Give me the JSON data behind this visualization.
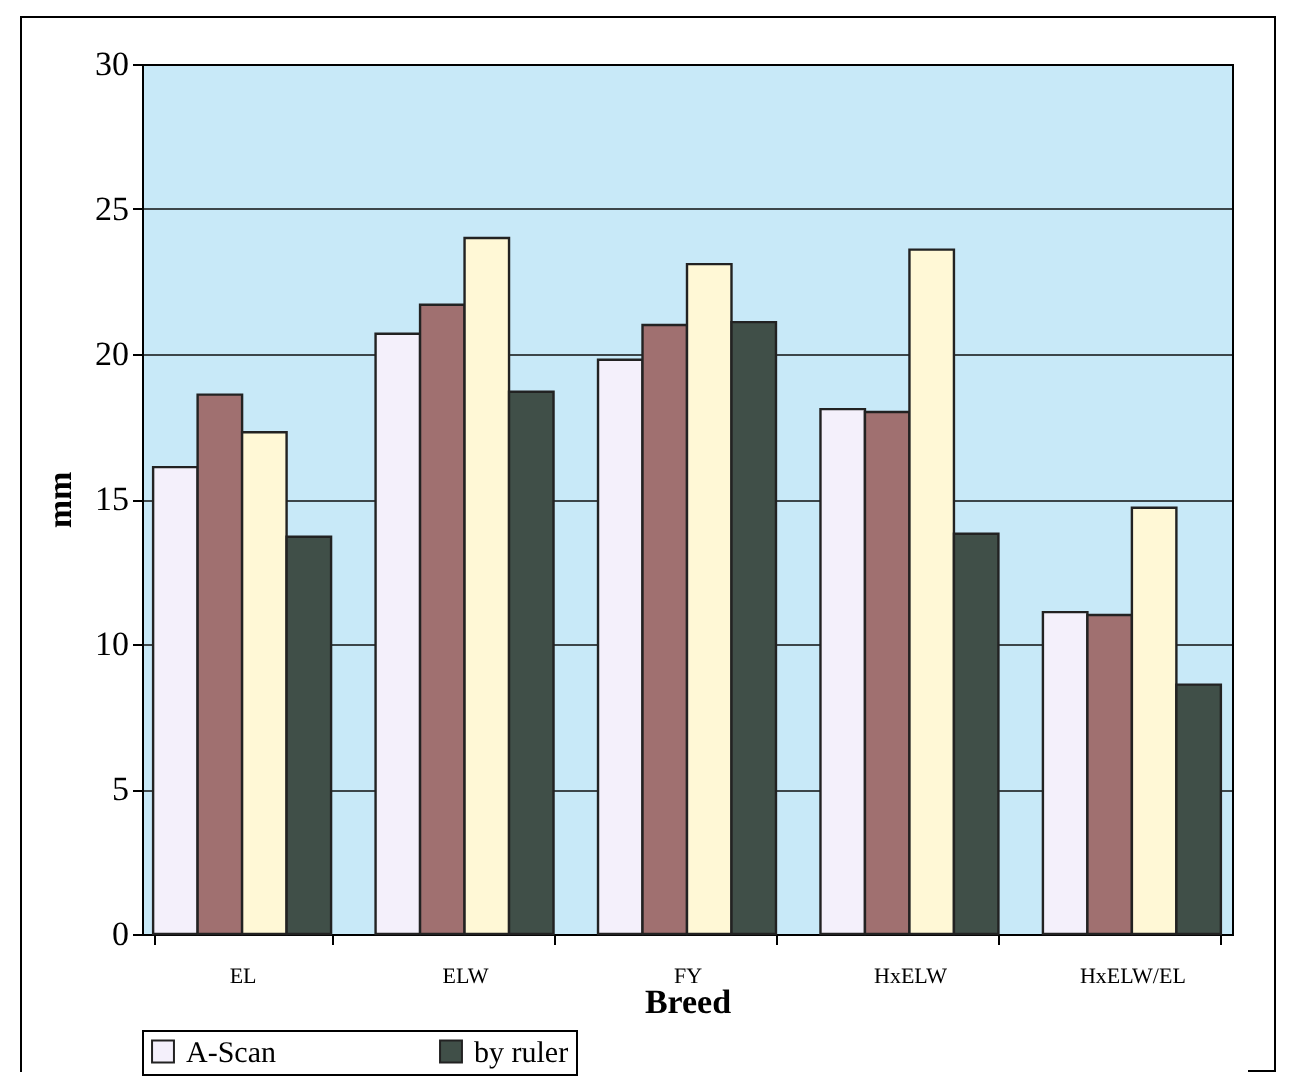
{
  "chart_data": {
    "type": "bar",
    "xlabel": "Breed",
    "ylabel": "mm",
    "categories": [
      "EL",
      "ELW",
      "FY",
      "HxELW",
      "HxELW/EL"
    ],
    "series": [
      {
        "name": "A-Scan",
        "color": "#f4f0fb",
        "values": [
          16.1,
          20.7,
          19.8,
          18.1,
          11.1
        ]
      },
      {
        "color": "#a07070",
        "values": [
          18.6,
          21.7,
          21.0,
          18.0,
          11.0
        ]
      },
      {
        "color": "#fff8d6",
        "values": [
          17.3,
          24.0,
          23.1,
          23.6,
          14.7
        ]
      },
      {
        "name": "by ruler",
        "color": "#404f48",
        "values": [
          13.7,
          18.7,
          21.1,
          13.8,
          8.6
        ]
      }
    ],
    "ylim": [
      0,
      30
    ],
    "yticks": [
      0,
      5,
      10,
      15,
      20,
      25,
      30
    ],
    "grid": "y",
    "legend": "bottom"
  }
}
